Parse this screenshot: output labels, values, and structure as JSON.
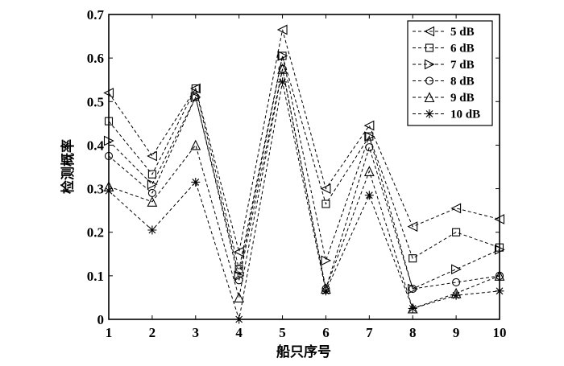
{
  "chart_data": {
    "type": "line",
    "title": "",
    "xlabel": "船只序号",
    "ylabel": "检测概率",
    "x": [
      1,
      2,
      3,
      4,
      5,
      6,
      7,
      8,
      9,
      10
    ],
    "xlim": [
      1,
      10
    ],
    "ylim": [
      0,
      0.7
    ],
    "xticks": [
      "1",
      "2",
      "3",
      "4",
      "5",
      "6",
      "7",
      "8",
      "9",
      "10"
    ],
    "yticks": [
      "0",
      "0.1",
      "0.2",
      "0.3",
      "0.4",
      "0.5",
      "0.6",
      "0.7"
    ],
    "grid": false,
    "legend_position": "top-right",
    "line_style": "dashed",
    "line_color": "#000000",
    "series": [
      {
        "name": "5 dB",
        "marker": "triangle-left",
        "values": [
          0.52,
          0.375,
          0.53,
          0.155,
          0.665,
          0.3,
          0.445,
          0.213,
          0.255,
          0.23
        ]
      },
      {
        "name": "6 dB",
        "marker": "square",
        "values": [
          0.455,
          0.333,
          0.53,
          0.115,
          0.605,
          0.265,
          0.42,
          0.14,
          0.2,
          0.165
        ]
      },
      {
        "name": "7 dB",
        "marker": "triangle-right",
        "values": [
          0.41,
          0.31,
          0.51,
          0.1,
          0.605,
          0.135,
          0.42,
          0.07,
          0.115,
          0.16
        ]
      },
      {
        "name": "8 dB",
        "marker": "circle",
        "values": [
          0.375,
          0.29,
          0.51,
          0.09,
          0.575,
          0.07,
          0.395,
          0.07,
          0.085,
          0.1
        ]
      },
      {
        "name": "9 dB",
        "marker": "triangle-up",
        "values": [
          0.305,
          0.27,
          0.4,
          0.05,
          0.575,
          0.07,
          0.34,
          0.025,
          0.06,
          0.1
        ]
      },
      {
        "name": "10 dB",
        "marker": "star",
        "values": [
          0.295,
          0.205,
          0.315,
          0.0,
          0.545,
          0.065,
          0.285,
          0.025,
          0.055,
          0.065
        ]
      }
    ]
  }
}
